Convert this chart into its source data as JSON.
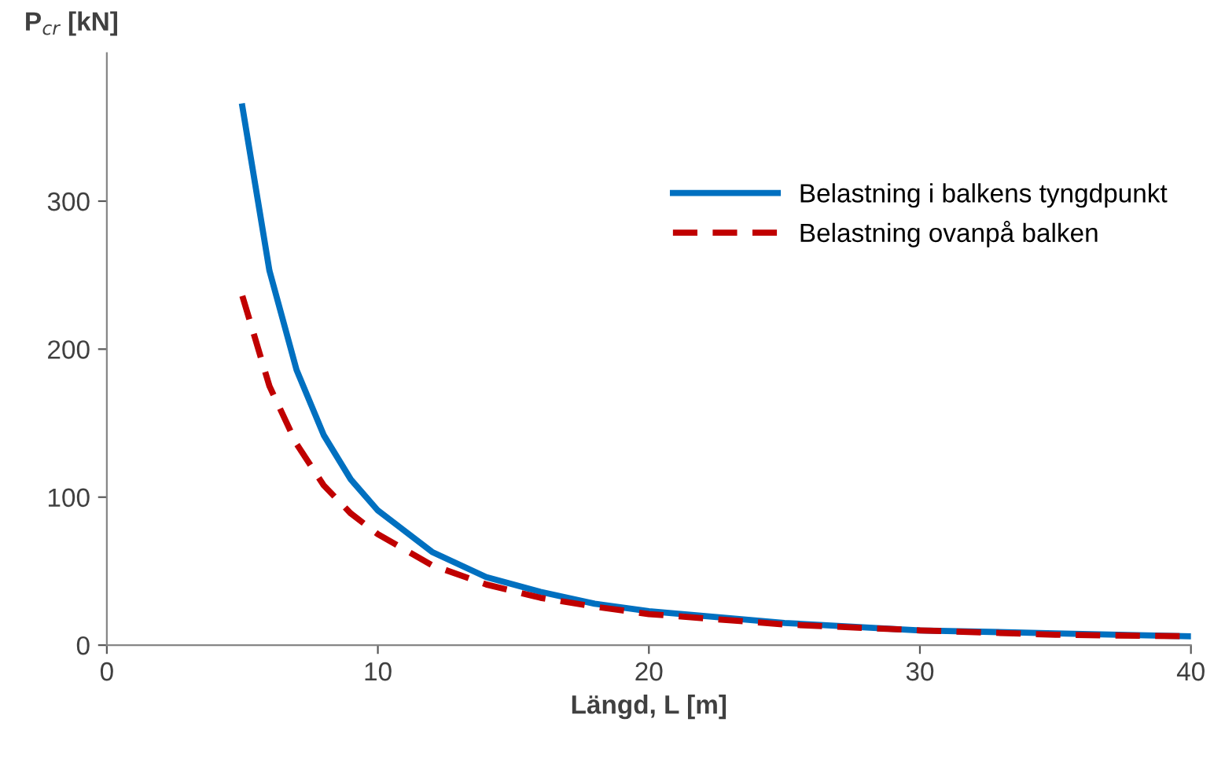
{
  "chart_data": {
    "type": "line",
    "xlabel": "Längd, L [m]",
    "ylabel": "P$_{cr}$ [kN]",
    "xlim": [
      0,
      40
    ],
    "xticks": [
      0,
      10,
      20,
      30,
      40
    ],
    "ylim": [
      0,
      400
    ],
    "yticks": [
      0,
      100,
      200,
      300
    ],
    "legend": "top right",
    "grid": false,
    "marker": "none",
    "series": [
      {
        "name": "Belastning i balkens tyngdpunkt",
        "color": "#0070c0",
        "line_style": "solid",
        "x": [
          5,
          6,
          7,
          8,
          9,
          10,
          12,
          14,
          16,
          18,
          20,
          25,
          30,
          35,
          40
        ],
        "values": [
          364,
          253,
          186,
          142,
          112,
          91,
          63,
          46,
          36,
          28,
          23,
          15,
          10,
          8,
          6
        ]
      },
      {
        "name": "Belastning ovanpå balken",
        "color": "#c00000",
        "line_style": "dashed",
        "x": [
          5,
          6,
          7,
          8,
          9,
          10,
          12,
          14,
          16,
          18,
          20,
          25,
          30,
          35,
          40
        ],
        "values": [
          236,
          175,
          136,
          108,
          89,
          75,
          54,
          41,
          32,
          26,
          21,
          14,
          10,
          7,
          6
        ]
      }
    ]
  }
}
